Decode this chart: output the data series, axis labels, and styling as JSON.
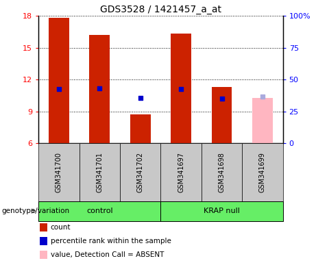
{
  "title": "GDS3528 / 1421457_a_at",
  "samples": [
    "GSM341700",
    "GSM341701",
    "GSM341702",
    "GSM341697",
    "GSM341698",
    "GSM341699"
  ],
  "absent": [
    false,
    false,
    false,
    false,
    false,
    true
  ],
  "count_values": [
    17.8,
    16.2,
    8.7,
    16.3,
    11.3,
    10.3
  ],
  "percentile_values": [
    11.1,
    11.15,
    10.3,
    11.1,
    10.2,
    10.4
  ],
  "ylim_left": [
    6,
    18
  ],
  "ylim_right": [
    0,
    100
  ],
  "yticks_left": [
    6,
    9,
    12,
    15,
    18
  ],
  "yticks_right": [
    0,
    25,
    50,
    75,
    100
  ],
  "yticklabels_right": [
    "0",
    "25",
    "50",
    "75",
    "100%"
  ],
  "bar_color_normal": "#cc2200",
  "bar_color_absent": "#ffb6c1",
  "dot_color_normal": "#0000cc",
  "dot_color_absent": "#aaaadd",
  "bg_sample": "#c8c8c8",
  "bg_group": "#66ee66",
  "bar_width": 0.5,
  "dot_size": 25,
  "title_fontsize": 10,
  "tick_fontsize": 8,
  "label_fontsize": 8,
  "legend_fontsize": 7.5,
  "sample_fontsize": 7
}
